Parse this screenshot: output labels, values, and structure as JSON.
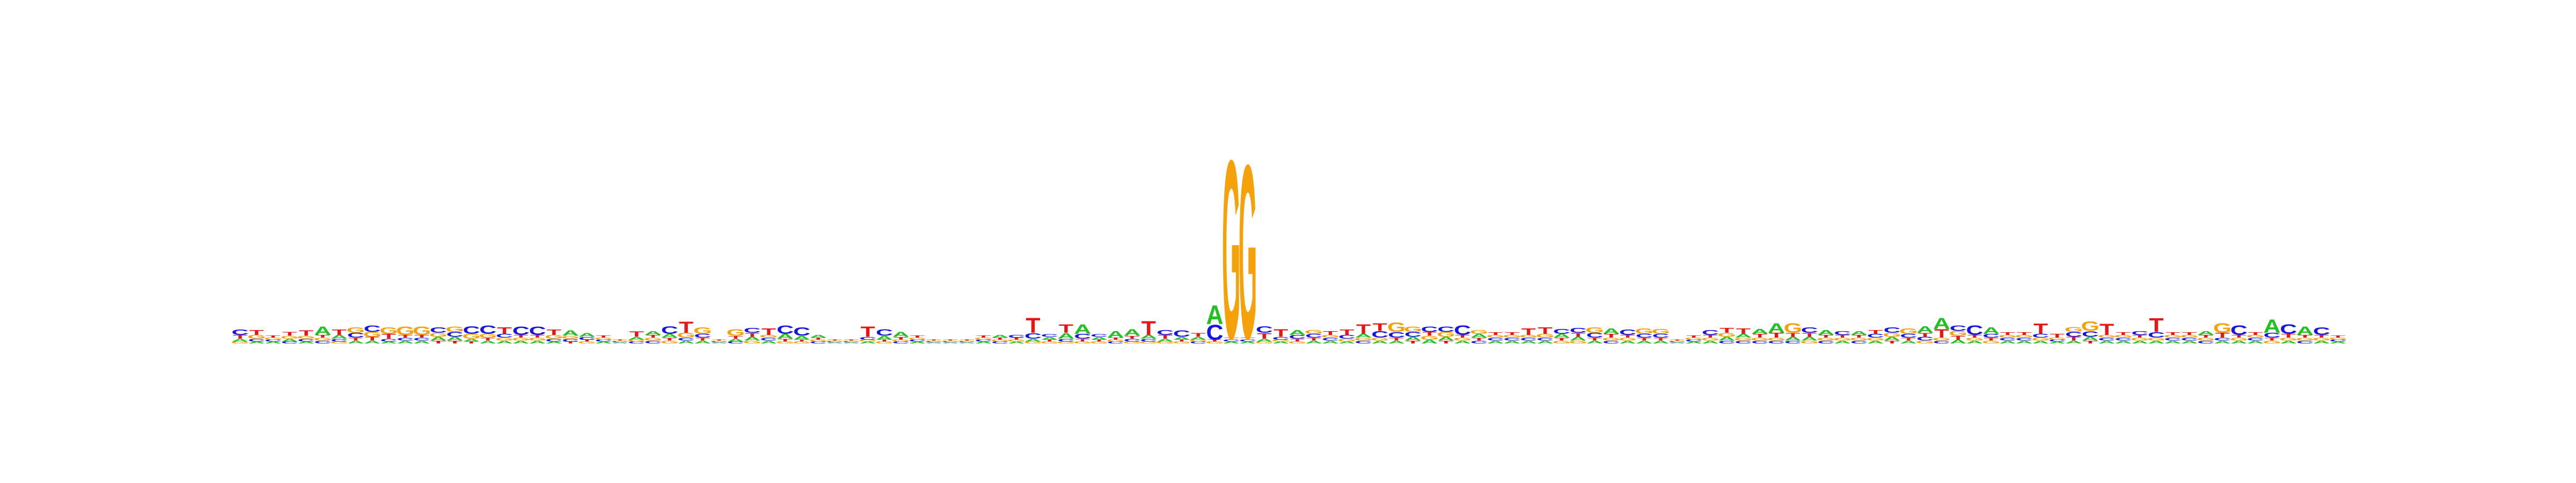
{
  "alphabet": {
    "A": "#22c022",
    "C": "#1515e6",
    "G": "#f5a20a",
    "T": "#e81515"
  },
  "chart_data": {
    "type": "sequence-logo",
    "title": "",
    "xlabel": "",
    "ylabel": "",
    "ylim_bits": [
      0,
      2
    ],
    "grid": false,
    "legend": "none",
    "positions": [
      {
        "A": 0.03,
        "C": 0.06,
        "G": 0.02,
        "T": 0.04
      },
      {
        "A": 0.02,
        "C": 0.03,
        "G": 0.04,
        "T": 0.05
      },
      {
        "A": 0.02,
        "C": 0.02,
        "G": 0.02,
        "T": 0.02
      },
      {
        "A": 0.03,
        "C": 0.02,
        "G": 0.03,
        "T": 0.04
      },
      {
        "A": 0.02,
        "C": 0.03,
        "G": 0.03,
        "T": 0.06
      },
      {
        "A": 0.09,
        "C": 0.03,
        "G": 0.03,
        "T": 0.03
      },
      {
        "A": 0.04,
        "C": 0.03,
        "G": 0.02,
        "T": 0.06
      },
      {
        "A": 0.03,
        "C": 0.05,
        "G": 0.06,
        "T": 0.03
      },
      {
        "A": 0.03,
        "C": 0.07,
        "G": 0.05,
        "T": 0.04
      },
      {
        "A": 0.02,
        "C": 0.03,
        "G": 0.07,
        "T": 0.05
      },
      {
        "A": 0.03,
        "C": 0.03,
        "G": 0.09,
        "T": 0.03
      },
      {
        "A": 0.03,
        "C": 0.03,
        "G": 0.09,
        "T": 0.03
      },
      {
        "A": 0.04,
        "C": 0.06,
        "G": 0.04,
        "T": 0.03
      },
      {
        "A": 0.04,
        "C": 0.05,
        "G": 0.06,
        "T": 0.03
      },
      {
        "A": 0.03,
        "C": 0.08,
        "G": 0.05,
        "T": 0.02
      },
      {
        "A": 0.03,
        "C": 0.09,
        "G": 0.04,
        "T": 0.03
      },
      {
        "A": 0.03,
        "C": 0.04,
        "G": 0.03,
        "T": 0.07
      },
      {
        "A": 0.03,
        "C": 0.09,
        "G": 0.03,
        "T": 0.03
      },
      {
        "A": 0.03,
        "C": 0.09,
        "G": 0.03,
        "T": 0.03
      },
      {
        "A": 0.02,
        "C": 0.03,
        "G": 0.04,
        "T": 0.06
      },
      {
        "A": 0.06,
        "C": 0.03,
        "G": 0.03,
        "T": 0.02
      },
      {
        "A": 0.04,
        "C": 0.03,
        "G": 0.02,
        "T": 0.02
      },
      {
        "A": 0.02,
        "C": 0.02,
        "G": 0.02,
        "T": 0.02
      },
      {
        "A": 0.01,
        "C": 0.01,
        "G": 0.01,
        "T": 0.01
      },
      {
        "A": 0.03,
        "C": 0.02,
        "G": 0.02,
        "T": 0.06
      },
      {
        "A": 0.04,
        "C": 0.03,
        "G": 0.03,
        "T": 0.03
      },
      {
        "A": 0.04,
        "C": 0.08,
        "G": 0.03,
        "T": 0.03
      },
      {
        "A": 0.03,
        "C": 0.03,
        "G": 0.05,
        "T": 0.12
      },
      {
        "A": 0.03,
        "C": 0.04,
        "G": 0.07,
        "T": 0.03
      },
      {
        "A": 0.01,
        "C": 0.01,
        "G": 0.01,
        "T": 0.01
      },
      {
        "A": 0.03,
        "C": 0.02,
        "G": 0.07,
        "T": 0.03
      },
      {
        "A": 0.04,
        "C": 0.05,
        "G": 0.03,
        "T": 0.04
      },
      {
        "A": 0.03,
        "C": 0.03,
        "G": 0.03,
        "T": 0.07
      },
      {
        "A": 0.05,
        "C": 0.09,
        "G": 0.02,
        "T": 0.03
      },
      {
        "A": 0.04,
        "C": 0.09,
        "G": 0.02,
        "T": 0.02
      },
      {
        "A": 0.03,
        "C": 0.02,
        "G": 0.02,
        "T": 0.02
      },
      {
        "A": 0.01,
        "C": 0.01,
        "G": 0.01,
        "T": 0.01
      },
      {
        "A": 0.01,
        "C": 0.01,
        "G": 0.01,
        "T": 0.01
      },
      {
        "A": 0.02,
        "C": 0.03,
        "G": 0.02,
        "T": 0.11
      },
      {
        "A": 0.04,
        "C": 0.07,
        "G": 0.02,
        "T": 0.02
      },
      {
        "A": 0.05,
        "C": 0.02,
        "G": 0.02,
        "T": 0.03
      },
      {
        "A": 0.02,
        "C": 0.02,
        "G": 0.02,
        "T": 0.02
      },
      {
        "A": 0.01,
        "C": 0.01,
        "G": 0.01,
        "T": 0.01
      },
      {
        "A": 0.01,
        "C": 0.01,
        "G": 0.01,
        "T": 0.01
      },
      {
        "A": 0.01,
        "C": 0.01,
        "G": 0.01,
        "T": 0.01
      },
      {
        "A": 0.02,
        "C": 0.02,
        "G": 0.02,
        "T": 0.02
      },
      {
        "A": 0.03,
        "C": 0.02,
        "G": 0.02,
        "T": 0.02
      },
      {
        "A": 0.02,
        "C": 0.03,
        "G": 0.02,
        "T": 0.02
      },
      {
        "A": 0.03,
        "C": 0.06,
        "G": 0.02,
        "T": 0.16
      },
      {
        "A": 0.03,
        "C": 0.03,
        "G": 0.02,
        "T": 0.02
      },
      {
        "A": 0.06,
        "C": 0.03,
        "G": 0.02,
        "T": 0.09
      },
      {
        "A": 0.1,
        "C": 0.05,
        "G": 0.02,
        "T": 0.03
      },
      {
        "A": 0.03,
        "C": 0.03,
        "G": 0.02,
        "T": 0.02
      },
      {
        "A": 0.07,
        "C": 0.02,
        "G": 0.02,
        "T": 0.02
      },
      {
        "A": 0.07,
        "C": 0.03,
        "G": 0.02,
        "T": 0.03
      },
      {
        "A": 0.04,
        "C": 0.03,
        "G": 0.02,
        "T": 0.15
      },
      {
        "A": 0.03,
        "C": 0.05,
        "G": 0.02,
        "T": 0.04
      },
      {
        "A": 0.03,
        "C": 0.07,
        "G": 0.02,
        "T": 0.02
      },
      {
        "A": 0.03,
        "C": 0.02,
        "G": 0.02,
        "T": 0.04
      },
      {
        "A": 0.2,
        "C": 0.16,
        "G": 0.02,
        "T": 0.02
      },
      {
        "A": 0.02,
        "C": 0.02,
        "G": 1.9,
        "T": 0.02
      },
      {
        "A": 0.02,
        "C": 0.02,
        "G": 1.85,
        "T": 0.02
      },
      {
        "A": 0.03,
        "C": 0.07,
        "G": 0.02,
        "T": 0.06
      },
      {
        "A": 0.02,
        "C": 0.03,
        "G": 0.02,
        "T": 0.08
      },
      {
        "A": 0.05,
        "C": 0.04,
        "G": 0.02,
        "T": 0.03
      },
      {
        "A": 0.03,
        "C": 0.04,
        "G": 0.04,
        "T": 0.03
      },
      {
        "A": 0.03,
        "C": 0.03,
        "G": 0.03,
        "T": 0.04
      },
      {
        "A": 0.02,
        "C": 0.04,
        "G": 0.03,
        "T": 0.06
      },
      {
        "A": 0.04,
        "C": 0.03,
        "G": 0.03,
        "T": 0.1
      },
      {
        "A": 0.03,
        "C": 0.07,
        "G": 0.03,
        "T": 0.08
      },
      {
        "A": 0.03,
        "C": 0.06,
        "G": 0.1,
        "T": 0.03
      },
      {
        "A": 0.04,
        "C": 0.05,
        "G": 0.06,
        "T": 0.03
      },
      {
        "A": 0.04,
        "C": 0.06,
        "G": 0.04,
        "T": 0.04
      },
      {
        "A": 0.04,
        "C": 0.06,
        "G": 0.05,
        "T": 0.03
      },
      {
        "A": 0.03,
        "C": 0.1,
        "G": 0.03,
        "T": 0.03
      },
      {
        "A": 0.04,
        "C": 0.03,
        "G": 0.04,
        "T": 0.03
      },
      {
        "A": 0.03,
        "C": 0.03,
        "G": 0.03,
        "T": 0.03
      },
      {
        "A": 0.03,
        "C": 0.03,
        "G": 0.03,
        "T": 0.03
      },
      {
        "A": 0.03,
        "C": 0.03,
        "G": 0.03,
        "T": 0.07
      },
      {
        "A": 0.03,
        "C": 0.03,
        "G": 0.04,
        "T": 0.07
      },
      {
        "A": 0.04,
        "C": 0.05,
        "G": 0.03,
        "T": 0.03
      },
      {
        "A": 0.04,
        "C": 0.05,
        "G": 0.03,
        "T": 0.04
      },
      {
        "A": 0.03,
        "C": 0.05,
        "G": 0.06,
        "T": 0.03
      },
      {
        "A": 0.06,
        "C": 0.03,
        "G": 0.03,
        "T": 0.04
      },
      {
        "A": 0.03,
        "C": 0.06,
        "G": 0.03,
        "T": 0.03
      },
      {
        "A": 0.03,
        "C": 0.04,
        "G": 0.06,
        "T": 0.03
      },
      {
        "A": 0.03,
        "C": 0.04,
        "G": 0.05,
        "T": 0.03
      },
      {
        "A": 0.01,
        "C": 0.01,
        "G": 0.01,
        "T": 0.01
      },
      {
        "A": 0.02,
        "C": 0.02,
        "G": 0.02,
        "T": 0.02
      },
      {
        "A": 0.03,
        "C": 0.05,
        "G": 0.03,
        "T": 0.03
      },
      {
        "A": 0.04,
        "C": 0.03,
        "G": 0.04,
        "T": 0.05
      },
      {
        "A": 0.04,
        "C": 0.03,
        "G": 0.03,
        "T": 0.06
      },
      {
        "A": 0.05,
        "C": 0.03,
        "G": 0.03,
        "T": 0.04
      },
      {
        "A": 0.1,
        "C": 0.03,
        "G": 0.03,
        "T": 0.05
      },
      {
        "A": 0.04,
        "C": 0.03,
        "G": 0.1,
        "T": 0.04
      },
      {
        "A": 0.04,
        "C": 0.06,
        "G": 0.03,
        "T": 0.04
      },
      {
        "A": 0.05,
        "C": 0.03,
        "G": 0.03,
        "T": 0.03
      },
      {
        "A": 0.03,
        "C": 0.04,
        "G": 0.03,
        "T": 0.03
      },
      {
        "A": 0.04,
        "C": 0.03,
        "G": 0.03,
        "T": 0.03
      },
      {
        "A": 0.03,
        "C": 0.04,
        "G": 0.03,
        "T": 0.04
      },
      {
        "A": 0.04,
        "C": 0.06,
        "G": 0.04,
        "T": 0.03
      },
      {
        "A": 0.03,
        "C": 0.04,
        "G": 0.06,
        "T": 0.03
      },
      {
        "A": 0.07,
        "C": 0.04,
        "G": 0.03,
        "T": 0.04
      },
      {
        "A": 0.12,
        "C": 0.03,
        "G": 0.03,
        "T": 0.09
      },
      {
        "A": 0.04,
        "C": 0.06,
        "G": 0.05,
        "T": 0.04
      },
      {
        "A": 0.03,
        "C": 0.1,
        "G": 0.03,
        "T": 0.03
      },
      {
        "A": 0.07,
        "C": 0.04,
        "G": 0.03,
        "T": 0.03
      },
      {
        "A": 0.03,
        "C": 0.03,
        "G": 0.03,
        "T": 0.03
      },
      {
        "A": 0.03,
        "C": 0.03,
        "G": 0.03,
        "T": 0.03
      },
      {
        "A": 0.03,
        "C": 0.04,
        "G": 0.03,
        "T": 0.11
      },
      {
        "A": 0.02,
        "C": 0.02,
        "G": 0.02,
        "T": 0.04
      },
      {
        "A": 0.03,
        "C": 0.05,
        "G": 0.05,
        "T": 0.04
      },
      {
        "A": 0.04,
        "C": 0.06,
        "G": 0.1,
        "T": 0.03
      },
      {
        "A": 0.03,
        "C": 0.03,
        "G": 0.03,
        "T": 0.12
      },
      {
        "A": 0.03,
        "C": 0.03,
        "G": 0.03,
        "T": 0.03
      },
      {
        "A": 0.03,
        "C": 0.04,
        "G": 0.03,
        "T": 0.03
      },
      {
        "A": 0.03,
        "C": 0.06,
        "G": 0.03,
        "T": 0.15
      },
      {
        "A": 0.03,
        "C": 0.03,
        "G": 0.03,
        "T": 0.03
      },
      {
        "A": 0.03,
        "C": 0.03,
        "G": 0.03,
        "T": 0.03
      },
      {
        "A": 0.04,
        "C": 0.03,
        "G": 0.03,
        "T": 0.03
      },
      {
        "A": 0.03,
        "C": 0.03,
        "G": 0.1,
        "T": 0.05
      },
      {
        "A": 0.03,
        "C": 0.1,
        "G": 0.03,
        "T": 0.03
      },
      {
        "A": 0.03,
        "C": 0.03,
        "G": 0.03,
        "T": 0.03
      },
      {
        "A": 0.14,
        "C": 0.05,
        "G": 0.03,
        "T": 0.03
      },
      {
        "A": 0.03,
        "C": 0.1,
        "G": 0.03,
        "T": 0.04
      },
      {
        "A": 0.09,
        "C": 0.03,
        "G": 0.03,
        "T": 0.03
      },
      {
        "A": 0.03,
        "C": 0.08,
        "G": 0.03,
        "T": 0.03
      },
      {
        "A": 0.02,
        "C": 0.02,
        "G": 0.02,
        "T": 0.02
      }
    ]
  }
}
